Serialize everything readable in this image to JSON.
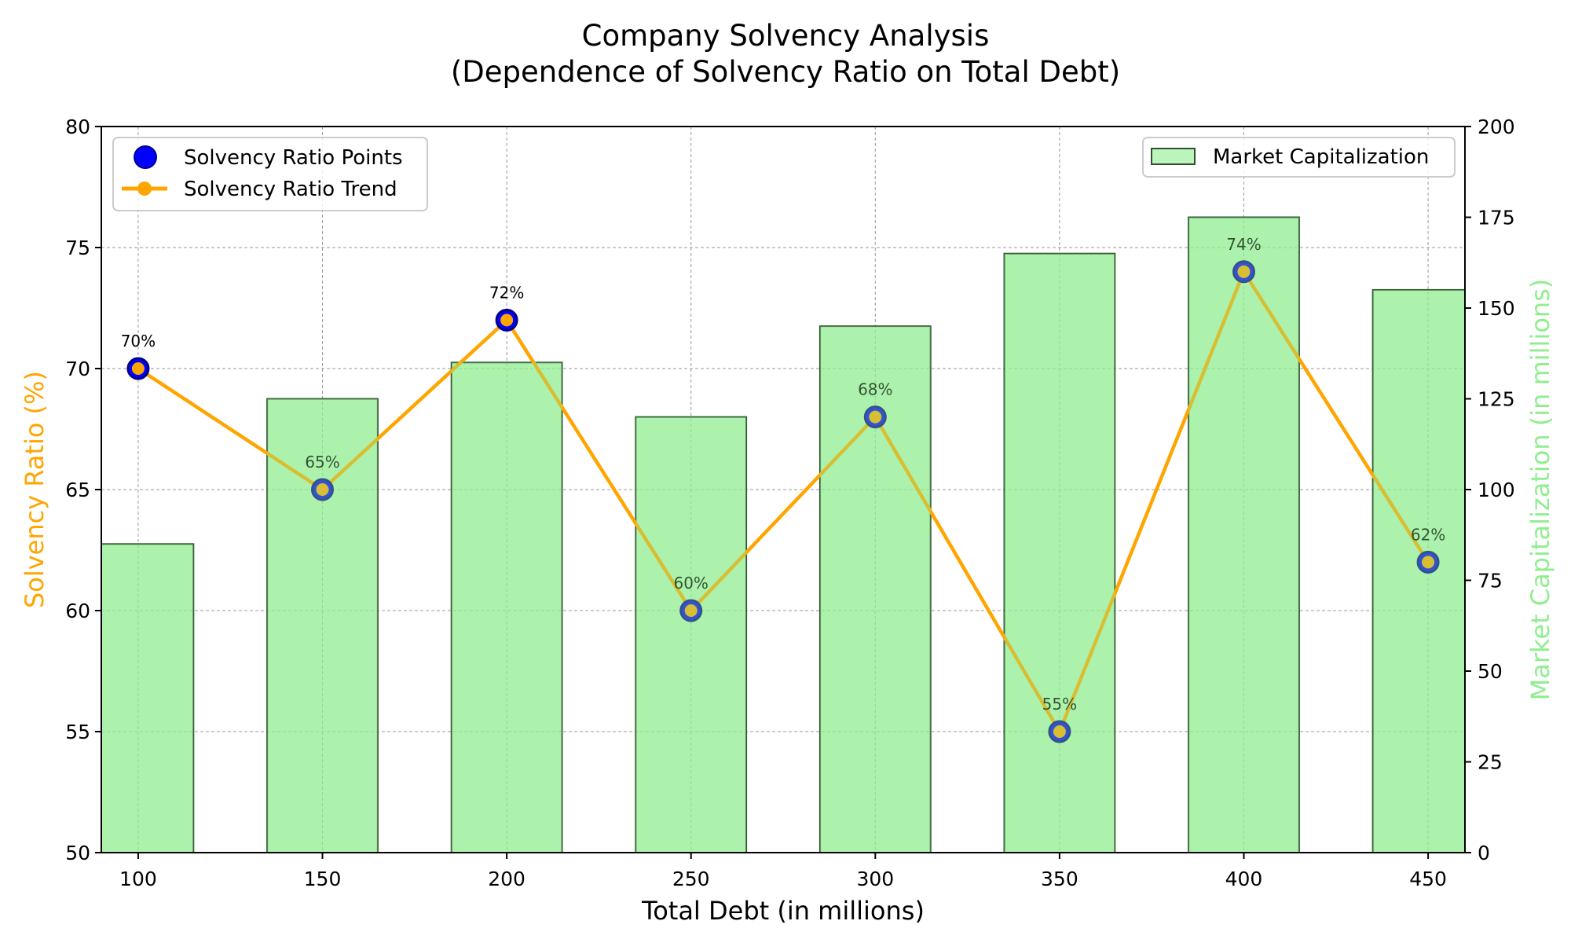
{
  "chart_data": {
    "type": "bar",
    "title_line1": "Company Solvency Analysis",
    "title_line2": "(Dependence of Solvency Ratio on Total Debt)",
    "xlabel": "Total Debt (in millions)",
    "ylabel_left": "Solvency Ratio (%)",
    "ylabel_right": "Market Capitalization (in millions)",
    "x": [
      100,
      150,
      200,
      250,
      300,
      350,
      400,
      450
    ],
    "xlim": [
      90,
      460
    ],
    "ylim_left": [
      50,
      80
    ],
    "ylim_right": [
      0,
      200
    ],
    "yticks_left": [
      50,
      55,
      60,
      65,
      70,
      75,
      80
    ],
    "yticks_right": [
      0,
      25,
      50,
      75,
      100,
      125,
      150,
      175,
      200
    ],
    "bar_width": 30,
    "series": [
      {
        "name": "Market Capitalization",
        "type": "bar",
        "axis": "right",
        "values": [
          85,
          125,
          135,
          120,
          145,
          165,
          175,
          155
        ]
      },
      {
        "name": "Solvency Ratio Points",
        "type": "scatter",
        "axis": "left",
        "values": [
          70,
          65,
          72,
          60,
          68,
          55,
          74,
          62
        ]
      },
      {
        "name": "Solvency Ratio Trend",
        "type": "line",
        "axis": "left",
        "values": [
          70,
          65,
          72,
          60,
          68,
          55,
          74,
          62
        ]
      }
    ],
    "point_labels": [
      "70%",
      "65%",
      "72%",
      "60%",
      "68%",
      "55%",
      "74%",
      "62%"
    ],
    "legend_left": [
      "Solvency Ratio Points",
      "Solvency Ratio Trend"
    ],
    "legend_right": [
      "Market Capitalization"
    ],
    "legend_left_placement": "top-left",
    "legend_right_placement": "top-right",
    "grid": true,
    "colors": {
      "bar_fill": "#90ee90",
      "bar_edge": "#2f4f2f",
      "point_fill": "#0000ff",
      "point_edge": "#00008b",
      "line": "#ffa500",
      "left_axis_label": "#ffa500",
      "right_axis_label": "#90ee90",
      "grid": "#808080"
    }
  }
}
